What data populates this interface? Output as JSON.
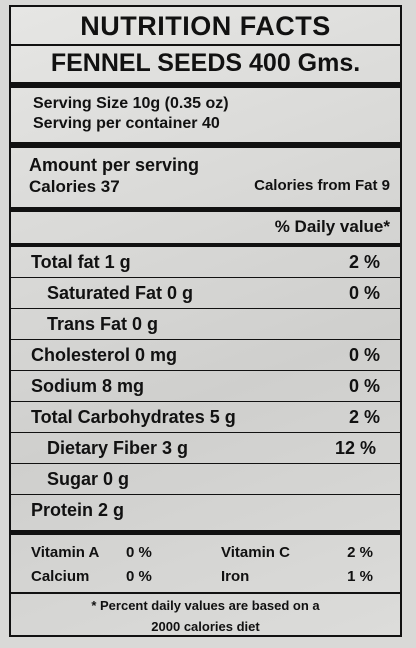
{
  "title": "NUTRITION FACTS",
  "product": "FENNEL SEEDS 400 Gms.",
  "serving_size": "Serving Size 10g (0.35 oz)",
  "servings_per_container": "Serving per container 40",
  "amount_header": "Amount per serving",
  "calories": "Calories 37",
  "calories_from_fat": "Calories from Fat 9",
  "daily_value_header": "% Daily value*",
  "rows": [
    {
      "label": "Total fat 1 g",
      "dv": "2 %"
    },
    {
      "label": "Saturated Fat 0 g",
      "dv": "0 %"
    },
    {
      "label": "Trans Fat 0 g"
    },
    {
      "label": "Cholesterol 0 mg",
      "dv": "0 %"
    },
    {
      "label": "Sodium 8 mg",
      "dv": "0 %"
    },
    {
      "label": "Total Carbohydrates 5 g",
      "dv": "2 %"
    },
    {
      "label": "Dietary Fiber 3 g",
      "dv": "12 %"
    },
    {
      "label": "Sugar 0 g"
    },
    {
      "label": "Protein 2 g"
    }
  ],
  "vitamins": [
    [
      {
        "name": "Vitamin A",
        "dv": "0 %"
      },
      {
        "name": "Vitamin C",
        "dv": "2 %"
      }
    ],
    [
      {
        "name": "Calcium",
        "dv": "0 %"
      },
      {
        "name": "Iron",
        "dv": "1 %"
      }
    ]
  ],
  "footnote": [
    "* Percent daily values are based on a",
    "2000 calories diet"
  ]
}
